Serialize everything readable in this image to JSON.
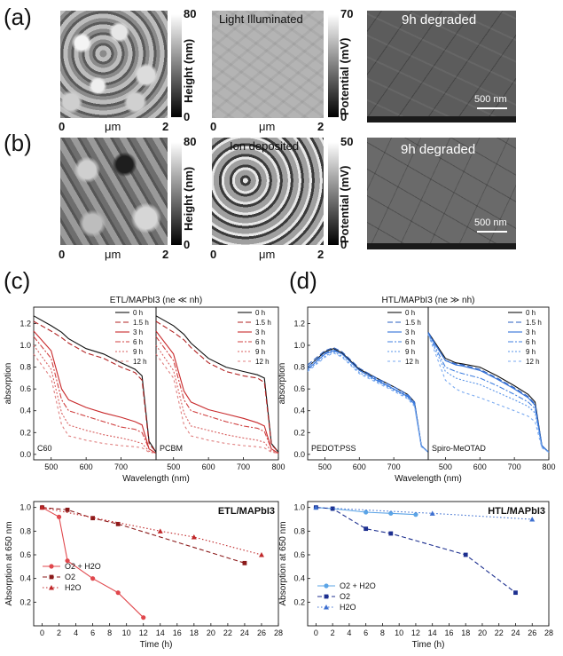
{
  "panel_labels": {
    "a": "(a)",
    "b": "(b)",
    "c": "(c)",
    "d": "(d)"
  },
  "row_a": {
    "afm": {
      "cb_max": "80",
      "cb_min": "0",
      "cb_title": "Height (nm)",
      "x_min": "0",
      "x_unit": "μm",
      "x_max": "2"
    },
    "kpfm": {
      "label": "Light Illuminated",
      "cb_max": "70",
      "cb_min": "0",
      "cb_title": "Potential (mV)",
      "x_min": "0",
      "x_unit": "μm",
      "x_max": "2"
    },
    "sem": {
      "label": "9h degraded",
      "scale": "500 nm"
    }
  },
  "row_b": {
    "afm": {
      "cb_max": "80",
      "cb_min": "0",
      "cb_title": "Height (nm)",
      "x_min": "0",
      "x_unit": "μm",
      "x_max": "2"
    },
    "kpfm": {
      "label": "Ion deposited",
      "cb_max": "50",
      "cb_min": "0",
      "cb_title": "Potential (mV)",
      "x_min": "0",
      "x_unit": "μm",
      "x_max": "2"
    },
    "sem": {
      "label": "9h degraded",
      "scale": "500 nm"
    }
  },
  "colors": {
    "legend_c": [
      "#111111",
      "#b22222",
      "#c8282a",
      "#d04040",
      "#d86060",
      "#e08080"
    ],
    "legend_d": [
      "#111111",
      "#2a5fc0",
      "#2f6fd8",
      "#3f7fe0",
      "#5a95e8",
      "#7aaaf0"
    ]
  },
  "chart_data": [
    {
      "id": "c-top",
      "type": "line",
      "title": "ETL/MAPbI3 (ne ≪ nh)",
      "ylabel": "absorption",
      "xlabel": "Wavelength (nm)",
      "ylim": [
        -0.05,
        1.35
      ],
      "yticks": [
        "0.0",
        "0.2",
        "0.4",
        "0.6",
        "0.8",
        "1.0",
        "1.2"
      ],
      "legend": [
        "0 h",
        "1.5 h",
        "3 h",
        "6 h",
        "9 h",
        "12 h"
      ],
      "subplots": [
        {
          "label": "C60",
          "xlim": [
            450,
            800
          ],
          "xticks": [
            "500",
            "600",
            "700"
          ],
          "x": [
            450,
            500,
            530,
            550,
            600,
            650,
            700,
            740,
            760,
            780,
            800
          ],
          "series": [
            {
              "name": "0 h",
              "values": [
                1.27,
                1.18,
                1.12,
                1.06,
                0.97,
                0.92,
                0.84,
                0.78,
                0.72,
                0.12,
                0.02
              ]
            },
            {
              "name": "1.5 h",
              "values": [
                1.22,
                1.13,
                1.07,
                1.02,
                0.93,
                0.88,
                0.8,
                0.75,
                0.68,
                0.1,
                0.02
              ]
            },
            {
              "name": "3 h",
              "values": [
                1.13,
                0.95,
                0.6,
                0.5,
                0.43,
                0.38,
                0.34,
                0.3,
                0.27,
                0.05,
                0.01
              ]
            },
            {
              "name": "6 h",
              "values": [
                1.08,
                0.88,
                0.5,
                0.4,
                0.35,
                0.3,
                0.25,
                0.23,
                0.2,
                0.05,
                0.01
              ]
            },
            {
              "name": "9 h",
              "values": [
                1.0,
                0.78,
                0.38,
                0.27,
                0.22,
                0.18,
                0.15,
                0.12,
                0.1,
                0.03,
                0.01
              ]
            },
            {
              "name": "12 h",
              "values": [
                0.92,
                0.7,
                0.27,
                0.17,
                0.13,
                0.1,
                0.08,
                0.07,
                0.06,
                0.02,
                0.01
              ]
            }
          ]
        },
        {
          "label": "PCBM",
          "xlim": [
            450,
            800
          ],
          "xticks": [
            "500",
            "600",
            "700",
            "800"
          ],
          "x": [
            450,
            500,
            530,
            550,
            600,
            650,
            700,
            740,
            760,
            780,
            800
          ],
          "series": [
            {
              "name": "0 h",
              "values": [
                1.27,
                1.18,
                1.1,
                1.02,
                0.88,
                0.8,
                0.76,
                0.73,
                0.7,
                0.1,
                0.02
              ]
            },
            {
              "name": "1.5 h",
              "values": [
                1.22,
                1.12,
                1.05,
                0.98,
                0.84,
                0.76,
                0.72,
                0.7,
                0.66,
                0.09,
                0.02
              ]
            },
            {
              "name": "3 h",
              "values": [
                1.13,
                0.92,
                0.58,
                0.48,
                0.41,
                0.37,
                0.33,
                0.29,
                0.26,
                0.05,
                0.01
              ]
            },
            {
              "name": "6 h",
              "values": [
                1.08,
                0.86,
                0.5,
                0.4,
                0.35,
                0.3,
                0.26,
                0.24,
                0.21,
                0.05,
                0.01
              ]
            },
            {
              "name": "9 h",
              "values": [
                1.0,
                0.77,
                0.38,
                0.26,
                0.22,
                0.18,
                0.15,
                0.13,
                0.11,
                0.03,
                0.01
              ]
            },
            {
              "name": "12 h",
              "values": [
                0.92,
                0.7,
                0.27,
                0.17,
                0.13,
                0.1,
                0.08,
                0.07,
                0.06,
                0.02,
                0.01
              ]
            }
          ]
        }
      ]
    },
    {
      "id": "d-top",
      "type": "line",
      "title": "HTL/MAPbI3 (ne ≫ nh)",
      "ylabel": "absorption",
      "xlabel": "Wavelength (nm)",
      "ylim": [
        -0.05,
        1.35
      ],
      "yticks": [
        "0.0",
        "0.2",
        "0.4",
        "0.6",
        "0.8",
        "1.0",
        "1.2"
      ],
      "legend": [
        "0 h",
        "1.5 h",
        "3 h",
        "6 h",
        "9 h",
        "12 h"
      ],
      "subplots": [
        {
          "label": "PEDOT:PSS",
          "xlim": [
            450,
            800
          ],
          "xticks": [
            "500",
            "600",
            "700"
          ],
          "x": [
            450,
            500,
            525,
            550,
            600,
            650,
            700,
            740,
            760,
            780,
            800
          ],
          "series": [
            {
              "name": "0 h",
              "values": [
                0.8,
                0.94,
                0.97,
                0.93,
                0.78,
                0.7,
                0.62,
                0.55,
                0.48,
                0.08,
                0.02
              ]
            },
            {
              "name": "1.5 h",
              "values": [
                0.82,
                0.95,
                0.98,
                0.94,
                0.79,
                0.7,
                0.62,
                0.55,
                0.48,
                0.08,
                0.02
              ]
            },
            {
              "name": "3 h",
              "values": [
                0.78,
                0.92,
                0.95,
                0.92,
                0.77,
                0.68,
                0.6,
                0.53,
                0.46,
                0.08,
                0.02
              ]
            },
            {
              "name": "6 h",
              "values": [
                0.8,
                0.93,
                0.96,
                0.92,
                0.77,
                0.69,
                0.6,
                0.54,
                0.47,
                0.08,
                0.02
              ]
            },
            {
              "name": "9 h",
              "values": [
                0.77,
                0.9,
                0.94,
                0.9,
                0.75,
                0.67,
                0.59,
                0.52,
                0.45,
                0.08,
                0.02
              ]
            },
            {
              "name": "12 h",
              "values": [
                0.76,
                0.89,
                0.93,
                0.89,
                0.74,
                0.66,
                0.58,
                0.51,
                0.44,
                0.07,
                0.02
              ]
            }
          ]
        },
        {
          "label": "Spiro-MeOTAD",
          "xlim": [
            450,
            800
          ],
          "xticks": [
            "500",
            "600",
            "700",
            "800"
          ],
          "x": [
            450,
            500,
            530,
            550,
            600,
            650,
            700,
            740,
            760,
            780,
            800
          ],
          "series": [
            {
              "name": "0 h",
              "values": [
                1.12,
                0.88,
                0.84,
                0.83,
                0.8,
                0.72,
                0.63,
                0.55,
                0.48,
                0.08,
                0.02
              ]
            },
            {
              "name": "1.5 h",
              "values": [
                1.12,
                0.86,
                0.83,
                0.82,
                0.78,
                0.7,
                0.61,
                0.53,
                0.46,
                0.08,
                0.02
              ]
            },
            {
              "name": "3 h",
              "values": [
                1.11,
                0.86,
                0.82,
                0.81,
                0.77,
                0.69,
                0.6,
                0.52,
                0.45,
                0.08,
                0.02
              ]
            },
            {
              "name": "6 h",
              "values": [
                1.11,
                0.8,
                0.76,
                0.74,
                0.7,
                0.63,
                0.55,
                0.48,
                0.42,
                0.07,
                0.02
              ]
            },
            {
              "name": "9 h",
              "values": [
                1.1,
                0.76,
                0.7,
                0.68,
                0.64,
                0.57,
                0.5,
                0.44,
                0.38,
                0.07,
                0.02
              ]
            },
            {
              "name": "12 h",
              "values": [
                1.1,
                0.68,
                0.6,
                0.57,
                0.52,
                0.46,
                0.4,
                0.35,
                0.3,
                0.06,
                0.02
              ]
            }
          ]
        }
      ]
    },
    {
      "id": "c-bottom",
      "type": "line",
      "title": "ETL/MAPbI3",
      "xlabel": "Time (h)",
      "ylabel": "Absorption at 650 nm",
      "xlim": [
        -1,
        28
      ],
      "ylim": [
        0.0,
        1.05
      ],
      "xticks": [
        "0",
        "2",
        "4",
        "6",
        "8",
        "10",
        "12",
        "14",
        "16",
        "18",
        "20",
        "22",
        "24",
        "26",
        "28"
      ],
      "yticks": [
        "0.2",
        "0.4",
        "0.6",
        "0.8",
        "1.0"
      ],
      "series": [
        {
          "name": "O2 + H2O",
          "marker": "circle",
          "dash": "solid",
          "x": [
            0,
            2,
            3,
            6,
            9,
            12
          ],
          "values": [
            1.0,
            0.92,
            0.55,
            0.4,
            0.28,
            0.07
          ]
        },
        {
          "name": "O2",
          "marker": "square",
          "dash": "dashed",
          "x": [
            0,
            3,
            6,
            9,
            24
          ],
          "values": [
            1.0,
            0.98,
            0.91,
            0.86,
            0.53
          ]
        },
        {
          "name": "H2O",
          "marker": "triangle",
          "dash": "dotted",
          "x": [
            0,
            14,
            18,
            26
          ],
          "values": [
            1.0,
            0.8,
            0.75,
            0.6
          ]
        }
      ]
    },
    {
      "id": "d-bottom",
      "type": "line",
      "title": "HTL/MAPbI3",
      "xlabel": "Time (h)",
      "ylabel": "Absorption at 650 nm",
      "xlim": [
        -1,
        28
      ],
      "ylim": [
        0.0,
        1.05
      ],
      "xticks": [
        "0",
        "2",
        "4",
        "6",
        "8",
        "10",
        "12",
        "14",
        "16",
        "18",
        "20",
        "22",
        "24",
        "26",
        "28"
      ],
      "yticks": [
        "0.2",
        "0.4",
        "0.6",
        "0.8",
        "1.0"
      ],
      "series": [
        {
          "name": "O2 + H2O",
          "marker": "circle",
          "dash": "solid",
          "x": [
            0,
            2,
            6,
            9,
            12
          ],
          "values": [
            1.0,
            0.99,
            0.96,
            0.95,
            0.94
          ]
        },
        {
          "name": "O2",
          "marker": "square",
          "dash": "dashed",
          "x": [
            0,
            2,
            6,
            9,
            18,
            24
          ],
          "values": [
            1.0,
            0.99,
            0.82,
            0.78,
            0.6,
            0.28
          ]
        },
        {
          "name": "H2O",
          "marker": "triangle",
          "dash": "dotted",
          "x": [
            0,
            14,
            26
          ],
          "values": [
            1.0,
            0.95,
            0.9
          ]
        }
      ]
    }
  ]
}
